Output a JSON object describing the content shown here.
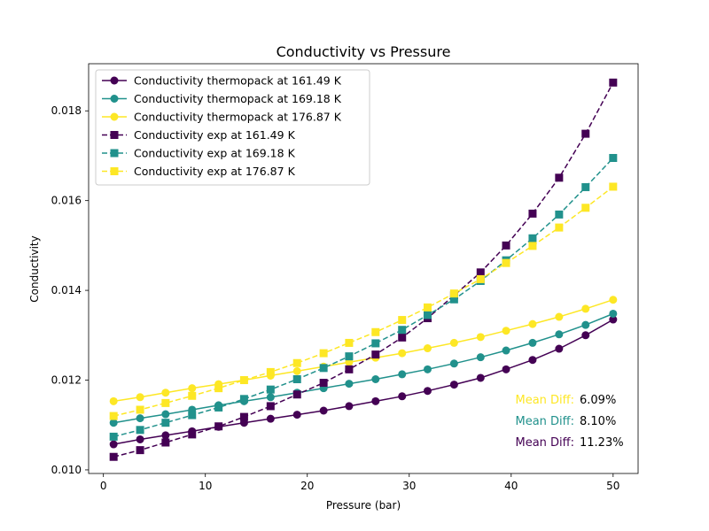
{
  "chart_data": {
    "type": "line",
    "title": "Conductivity vs Pressure",
    "xlabel": "Pressure (bar)",
    "ylabel": "Conductivity",
    "xlim": [
      -1.45,
      52.45
    ],
    "ylim": [
      0.00992,
      0.01905
    ],
    "xticks": [
      0,
      10,
      20,
      30,
      40,
      50
    ],
    "yticks": [
      0.01,
      0.012,
      0.014,
      0.016,
      0.018
    ],
    "ytick_labels": [
      "0.010",
      "0.012",
      "0.014",
      "0.016",
      "0.018"
    ],
    "legend_position": "upper-left",
    "grid": false,
    "x": [
      1.0,
      3.5,
      6.0,
      8.6,
      11.1,
      13.6,
      16.1,
      18.6,
      21.2,
      23.7,
      26.2,
      28.7,
      31.2,
      33.8,
      36.3,
      38.8,
      41.3,
      43.8,
      46.4,
      48.9,
      50.0
    ],
    "series": [
      {
        "name": "Conductivity thermopack at 161.49 K",
        "color": "#440154",
        "marker": "circle",
        "linestyle": "solid",
        "x": [
          1.0,
          3.6,
          6.1,
          8.7,
          11.3,
          13.8,
          16.4,
          19.0,
          21.6,
          24.1,
          26.7,
          29.3,
          31.8,
          34.4,
          37.0,
          39.5,
          42.1,
          44.7,
          47.3,
          50.0
        ],
        "values": [
          0.01057,
          0.01068,
          0.01077,
          0.01086,
          0.01096,
          0.01105,
          0.01114,
          0.01123,
          0.01132,
          0.01142,
          0.01153,
          0.01164,
          0.01176,
          0.0119,
          0.01205,
          0.01224,
          0.01245,
          0.0127,
          0.013,
          0.01335
        ]
      },
      {
        "name": "Conductivity thermopack at 169.18 K",
        "color": "#21918c",
        "marker": "circle",
        "linestyle": "solid",
        "x": [
          1.0,
          3.6,
          6.1,
          8.7,
          11.3,
          13.8,
          16.4,
          19.0,
          21.6,
          24.1,
          26.7,
          29.3,
          31.8,
          34.4,
          37.0,
          39.5,
          42.1,
          44.7,
          47.3,
          50.0
        ],
        "values": [
          0.01105,
          0.01115,
          0.01124,
          0.01134,
          0.01144,
          0.01153,
          0.01162,
          0.01172,
          0.01182,
          0.01192,
          0.01202,
          0.01213,
          0.01224,
          0.01237,
          0.01251,
          0.01266,
          0.01283,
          0.01302,
          0.01323,
          0.01348
        ]
      },
      {
        "name": "Conductivity thermopack at 176.87 K",
        "color": "#fde725",
        "marker": "circle",
        "linestyle": "solid",
        "x": [
          1.0,
          3.6,
          6.1,
          8.7,
          11.3,
          13.8,
          16.4,
          19.0,
          21.6,
          24.1,
          26.7,
          29.3,
          31.8,
          34.4,
          37.0,
          39.5,
          42.1,
          44.7,
          47.3,
          50.0
        ],
        "values": [
          0.01153,
          0.01162,
          0.01172,
          0.01182,
          0.01191,
          0.012,
          0.0121,
          0.0122,
          0.0123,
          0.0124,
          0.0125,
          0.0126,
          0.01271,
          0.01283,
          0.01296,
          0.0131,
          0.01325,
          0.01341,
          0.01359,
          0.01379
        ]
      },
      {
        "name": "Conductivity exp at 161.49 K",
        "color": "#440154",
        "marker": "square",
        "linestyle": "dashed",
        "x": [
          1.0,
          3.6,
          6.1,
          8.7,
          11.3,
          13.8,
          16.4,
          19.0,
          21.6,
          24.1,
          26.7,
          29.3,
          31.8,
          34.4,
          37.0,
          39.5,
          42.1,
          44.7,
          47.3,
          50.0
        ],
        "values": [
          0.01029,
          0.01044,
          0.01061,
          0.01079,
          0.01097,
          0.01118,
          0.01142,
          0.01168,
          0.01194,
          0.01224,
          0.01257,
          0.01295,
          0.01338,
          0.01389,
          0.0144,
          0.015,
          0.01571,
          0.01651,
          0.01749,
          0.01863
        ]
      },
      {
        "name": "Conductivity exp at 169.18 K",
        "color": "#21918c",
        "marker": "square",
        "linestyle": "dashed",
        "x": [
          1.0,
          3.6,
          6.1,
          8.7,
          11.3,
          13.8,
          16.4,
          19.0,
          21.6,
          24.1,
          26.7,
          29.3,
          31.8,
          34.4,
          37.0,
          39.5,
          42.1,
          44.7,
          47.3,
          50.0
        ],
        "values": [
          0.01074,
          0.01089,
          0.01105,
          0.01122,
          0.01139,
          0.01158,
          0.01179,
          0.01202,
          0.01227,
          0.01253,
          0.01282,
          0.01312,
          0.01345,
          0.0138,
          0.01421,
          0.01467,
          0.01516,
          0.01569,
          0.0163,
          0.01695
        ]
      },
      {
        "name": "Conductivity exp at 176.87 K",
        "color": "#fde725",
        "marker": "square",
        "linestyle": "dashed",
        "x": [
          1.0,
          3.6,
          6.1,
          8.7,
          11.3,
          13.8,
          16.4,
          19.0,
          21.6,
          24.1,
          26.7,
          29.3,
          31.8,
          34.4,
          37.0,
          39.5,
          42.1,
          44.7,
          47.3,
          50.0
        ],
        "values": [
          0.0112,
          0.01134,
          0.01149,
          0.01165,
          0.01182,
          0.012,
          0.01218,
          0.01238,
          0.0126,
          0.01283,
          0.01307,
          0.01334,
          0.01362,
          0.01393,
          0.01425,
          0.01461,
          0.01499,
          0.0154,
          0.01584,
          0.01631
        ]
      }
    ],
    "annotations": [
      {
        "label": "Mean Diff:",
        "value": "6.09%",
        "color": "#fde725"
      },
      {
        "label": "Mean Diff:",
        "value": "8.10%",
        "color": "#21918c"
      },
      {
        "label": "Mean Diff:",
        "value": "11.23%",
        "color": "#440154"
      }
    ]
  }
}
